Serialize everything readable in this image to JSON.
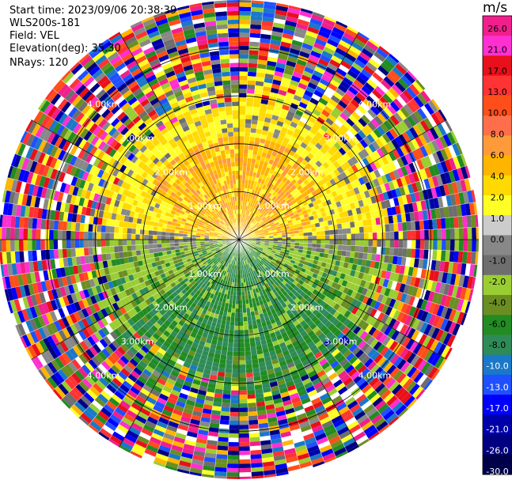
{
  "info": {
    "start_time": "Start time: 2023/09/06 20:38:39",
    "instrument": "WLS200s-181",
    "field": "Field: VEL",
    "elevation": "Elevation(deg): 35.30",
    "nrays": "NRays: 120"
  },
  "colorbar": {
    "unit": "m/s",
    "ticks": [
      "26.0",
      "21.0",
      "17.0",
      "13.0",
      "10.0",
      "8.0",
      "6.0",
      "4.0",
      "2.0",
      "1.0",
      "0.0",
      "-1.0",
      "-2.0",
      "-4.0",
      "-6.0",
      "-8.0",
      "-10.0",
      "-13.0",
      "-17.0",
      "-21.0",
      "-26.0",
      "-30.0"
    ],
    "colors": [
      "#f01f8c",
      "#ff2fd0",
      "#e8101a",
      "#ff3333",
      "#ff4e1a",
      "#ff6e4a",
      "#ff9a3a",
      "#ffb400",
      "#ffd900",
      "#ffff26",
      "#cccccc",
      "#888888",
      "#6e6e6e",
      "#9acd32",
      "#6b8e23",
      "#228b22",
      "#2e8b57",
      "#1a78c8",
      "#1e50ff",
      "#0000ff",
      "#0000aa",
      "#000080",
      "#00004a"
    ]
  },
  "chart_data": {
    "type": "heatmap",
    "title": "",
    "field": "VEL",
    "units": "m/s",
    "range_rings": [
      {
        "label": "1.00km",
        "km": 1.0
      },
      {
        "label": "2.00km",
        "km": 2.0
      },
      {
        "label": "3.00km",
        "km": 3.0
      },
      {
        "label": "4.00km",
        "km": 4.0
      }
    ],
    "max_range_km": 5.0,
    "nrays": 120,
    "pattern": {
      "north_half": "positive velocities 1 to 8 m/s near radar",
      "south_half": "negative velocities -2 to -8 m/s near radar",
      "outer": "noise beyond ~3 km"
    }
  }
}
